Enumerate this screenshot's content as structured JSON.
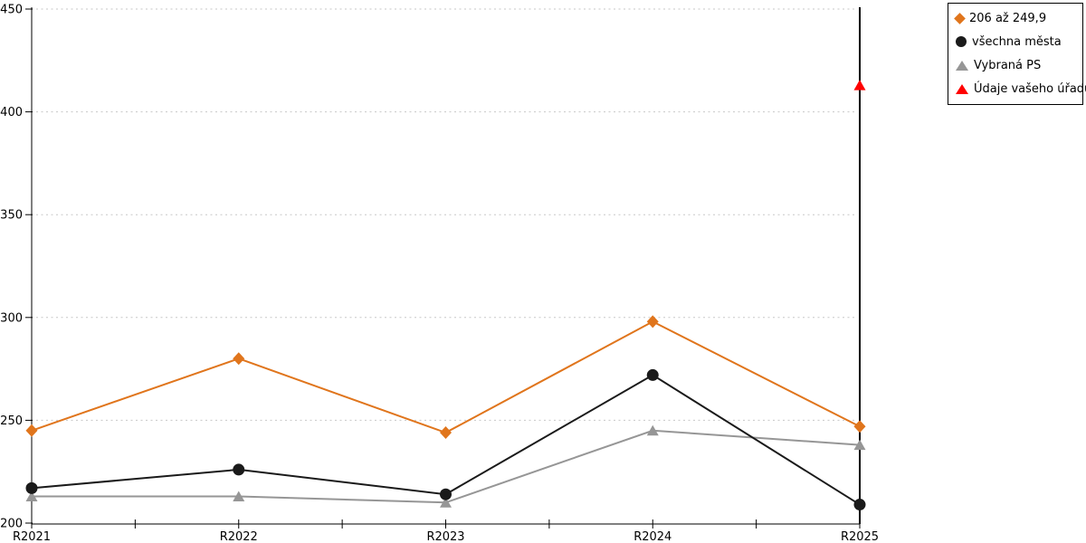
{
  "chart_data": {
    "type": "line",
    "title": "",
    "xlabel": "",
    "ylabel": "",
    "categories": [
      "R2021",
      "R2022",
      "R2023",
      "R2024",
      "R2025"
    ],
    "series": [
      {
        "name": "206 až 249,9",
        "marker": "diamond",
        "color": "#E0751C",
        "line_visible": true,
        "values": [
          245,
          280,
          244,
          298,
          247
        ]
      },
      {
        "name": "všechna města",
        "marker": "circle",
        "color": "#1A1A1A",
        "line_visible": true,
        "values": [
          217,
          226,
          214,
          272,
          209
        ]
      },
      {
        "name": "Vybraná PS",
        "marker": "triangle",
        "color": "#969696",
        "line_visible": true,
        "values": [
          213,
          213,
          210,
          245,
          238
        ]
      },
      {
        "name": "Údaje vašeho úřadu",
        "marker": "triangle",
        "color": "#FF0000",
        "line_visible": false,
        "values": [
          null,
          null,
          null,
          null,
          413
        ]
      }
    ],
    "ylim": [
      200,
      450
    ],
    "yticks": [
      200,
      250,
      300,
      350,
      400,
      450
    ],
    "x_minor_ticks_between_categories": 1,
    "grid": "horizontal-dotted",
    "gridline_color": "#C7C7C7",
    "axis_color": "#000000",
    "background_color": "#FFFFFF",
    "legend_position": "top-right",
    "legend_border_color": "#000000"
  }
}
